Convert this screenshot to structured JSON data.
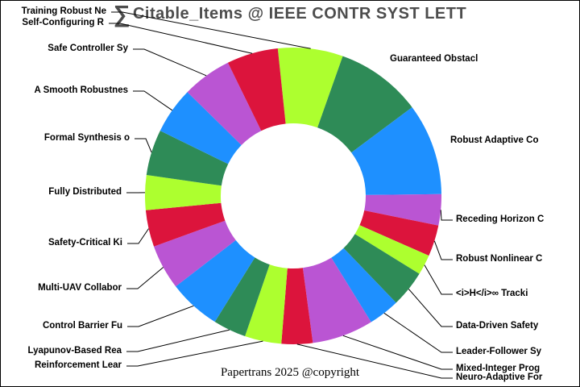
{
  "title": {
    "sigma": "∑",
    "text": "Citable_Items @ IEEE CONTR SYST LETT"
  },
  "footer": "Papertrans 2025 @copyright",
  "background_color": "#FFFFFF",
  "title_color": "#4D4D4D",
  "leader_line_color": "#000000",
  "chart_data": {
    "type": "pie",
    "donut": true,
    "title": "∑ Citable_Items @ IEEE CONTR SYST LETT",
    "legend": "none",
    "grid": "off",
    "start_angle_deg_clockwise_from_top": 354,
    "inner_radius_ratio": 0.49,
    "palette": [
      "#ADFF2F",
      "#2E8B57",
      "#1E90FF",
      "#BA55D3",
      "#DC143C"
    ],
    "slices": [
      {
        "label": "Training Robust Ne",
        "percent": 7.1,
        "color": "#ADFF2F",
        "label_side": "left"
      },
      {
        "label": "Guaranteed Obstacl",
        "percent": 9.4,
        "color": "#2E8B57",
        "label_side": "right"
      },
      {
        "label": "Robust Adaptive Co",
        "percent": 10.0,
        "color": "#1E90FF",
        "label_side": "right"
      },
      {
        "label": "Receding Horizon C",
        "percent": 3.4,
        "color": "#BA55D3",
        "label_side": "right"
      },
      {
        "label": "Robust Nonlinear C",
        "percent": 3.4,
        "color": "#DC143C",
        "label_side": "right"
      },
      {
        "label": "<i>H</i>∞ Tracki",
        "percent": 2.2,
        "color": "#ADFF2F",
        "label_side": "right"
      },
      {
        "label": "Data-Driven Safety",
        "percent": 4.0,
        "color": "#2E8B57",
        "label_side": "right"
      },
      {
        "label": "Leader-Follower Sy",
        "percent": 3.4,
        "color": "#1E90FF",
        "label_side": "right"
      },
      {
        "label": "Mixed-Integer Prog",
        "percent": 6.7,
        "color": "#BA55D3",
        "label_side": "right"
      },
      {
        "label": "Neuro-Adaptive For",
        "percent": 3.4,
        "color": "#DC143C",
        "label_side": "right"
      },
      {
        "label": "Reinforcement Lear",
        "percent": 4.0,
        "color": "#ADFF2F",
        "label_side": "left"
      },
      {
        "label": "Lyapunov-Based Rea",
        "percent": 3.6,
        "color": "#2E8B57",
        "label_side": "left"
      },
      {
        "label": "Control Barrier Fu",
        "percent": 5.7,
        "color": "#1E90FF",
        "label_side": "left"
      },
      {
        "label": "Multi-UAV Collabor",
        "percent": 4.9,
        "color": "#BA55D3",
        "label_side": "left"
      },
      {
        "label": "Safety-Critical Ki",
        "percent": 4.0,
        "color": "#DC143C",
        "label_side": "left"
      },
      {
        "label": "Fully Distributed",
        "percent": 3.8,
        "color": "#ADFF2F",
        "label_side": "left"
      },
      {
        "label": "Formal Synthesis o",
        "percent": 5.0,
        "color": "#2E8B57",
        "label_side": "left"
      },
      {
        "label": "A Smooth Robustnes",
        "percent": 5.1,
        "color": "#1E90FF",
        "label_side": "left"
      },
      {
        "label": "Safe Controller Sy",
        "percent": 5.4,
        "color": "#BA55D3",
        "label_side": "left"
      },
      {
        "label": "Self-Configuring R",
        "percent": 5.6,
        "color": "#DC143C",
        "label_side": "left"
      }
    ]
  }
}
